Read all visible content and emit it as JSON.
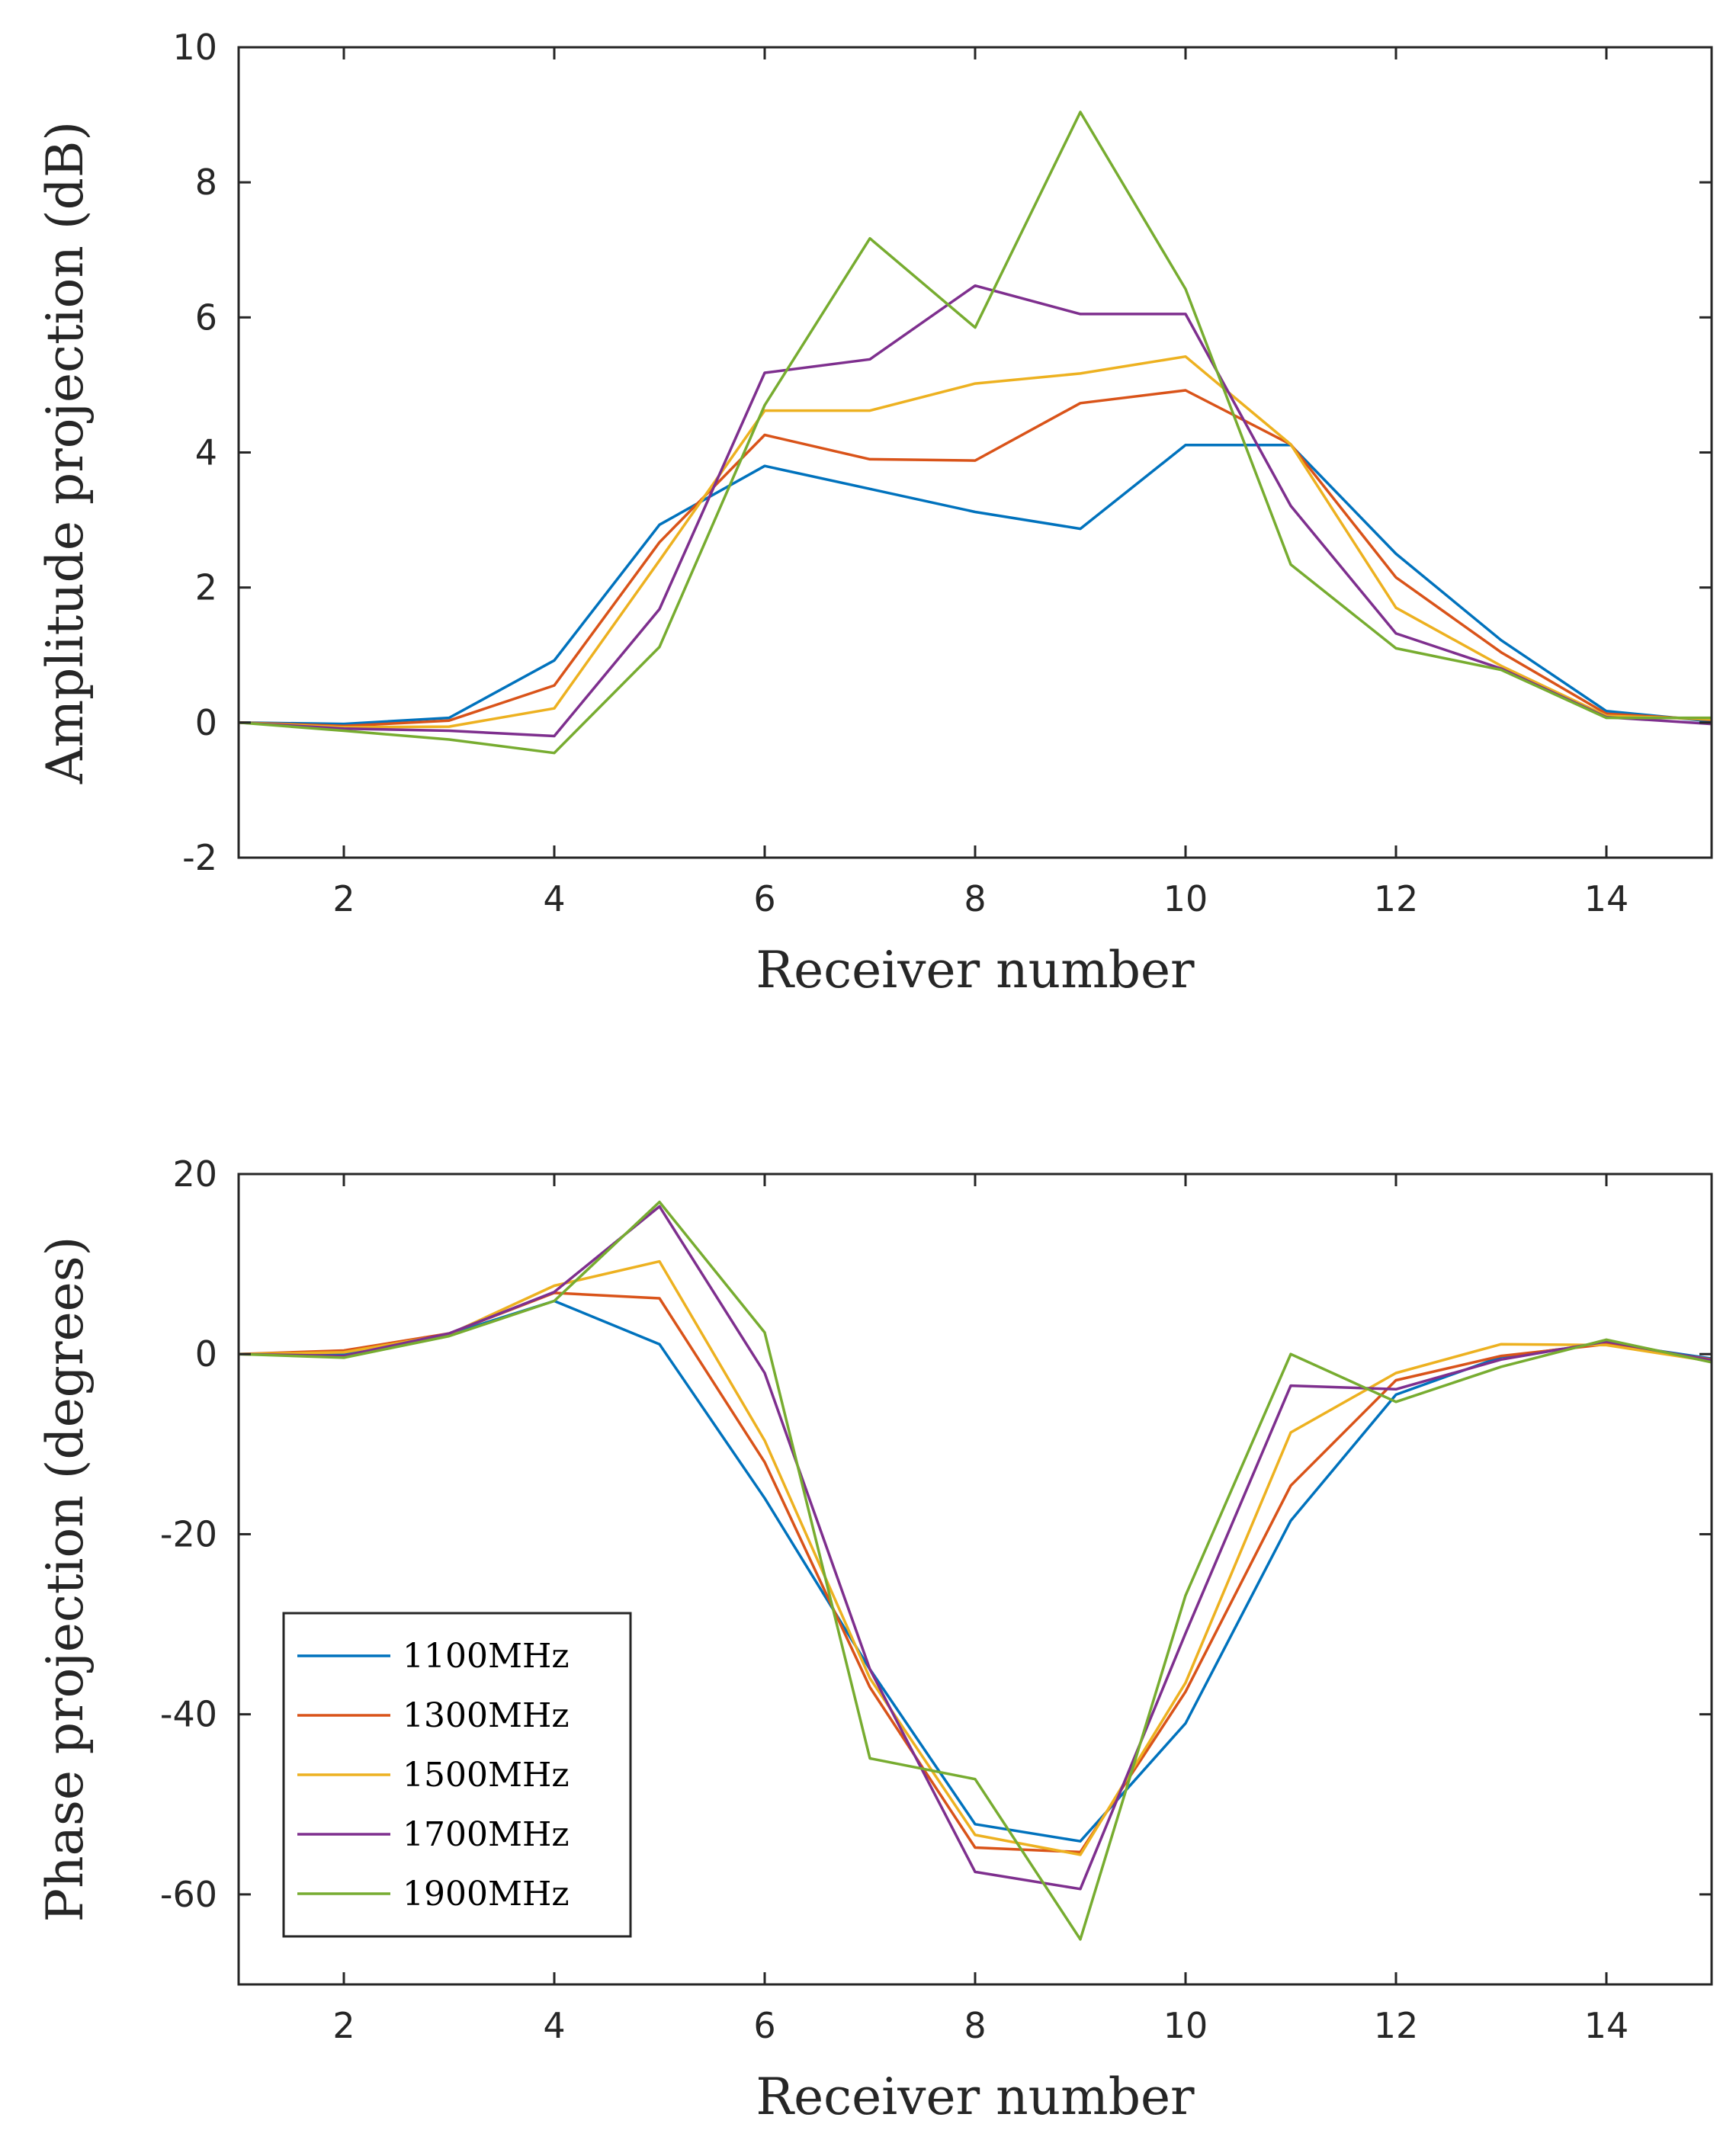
{
  "chart_data": [
    {
      "type": "line",
      "xlabel": "Receiver number",
      "ylabel": "Amplitude projection (dB)",
      "xlim": [
        1,
        15
      ],
      "ylim": [
        -2,
        10
      ],
      "xticks": [
        2,
        4,
        6,
        8,
        10,
        12,
        14
      ],
      "yticks": [
        -2,
        0,
        2,
        4,
        6,
        8,
        10
      ],
      "grid": false,
      "x": [
        1,
        2,
        3,
        4,
        5,
        6,
        7,
        8,
        9,
        10,
        11,
        12,
        13,
        14,
        15
      ],
      "series": [
        {
          "name": "1100MHz",
          "color": "#0072BD",
          "values": [
            0,
            -0.02,
            0.07,
            0.92,
            2.93,
            3.8,
            3.46,
            3.12,
            2.87,
            4.11,
            4.11,
            2.5,
            1.22,
            0.17,
            0.02
          ]
        },
        {
          "name": "1300MHz",
          "color": "#D95319",
          "values": [
            0,
            -0.05,
            0.03,
            0.55,
            2.67,
            4.26,
            3.9,
            3.88,
            4.73,
            4.92,
            4.12,
            2.15,
            1.04,
            0.13,
            0.04
          ]
        },
        {
          "name": "1500MHz",
          "color": "#EDB120",
          "values": [
            0,
            -0.07,
            -0.06,
            0.21,
            2.4,
            4.62,
            4.62,
            5.02,
            5.17,
            5.42,
            4.12,
            1.7,
            0.84,
            0.1,
            0.05
          ]
        },
        {
          "name": "1700MHz",
          "color": "#7E2F8E",
          "values": [
            0,
            -0.09,
            -0.12,
            -0.2,
            1.68,
            5.18,
            5.38,
            6.47,
            6.05,
            6.05,
            3.21,
            1.32,
            0.8,
            0.08,
            -0.02
          ]
        },
        {
          "name": "1900MHz",
          "color": "#77AC30",
          "values": [
            0,
            -0.12,
            -0.25,
            -0.45,
            1.12,
            4.7,
            7.17,
            5.85,
            9.04,
            6.42,
            2.34,
            1.1,
            0.78,
            0.07,
            0.07
          ]
        }
      ]
    },
    {
      "type": "line",
      "xlabel": "Receiver number",
      "ylabel": "Phase projection (degrees)",
      "xlim": [
        1,
        15
      ],
      "ylim": [
        -70,
        20
      ],
      "xticks": [
        2,
        4,
        6,
        8,
        10,
        12,
        14
      ],
      "yticks": [
        -60,
        -40,
        -20,
        0,
        20
      ],
      "grid": false,
      "legend_placement": "lower-left",
      "x": [
        1,
        2,
        3,
        4,
        5,
        6,
        7,
        8,
        9,
        10,
        11,
        12,
        13,
        14,
        15
      ],
      "series": [
        {
          "name": "1100MHz",
          "color": "#0072BD",
          "values": [
            0,
            0,
            2.2,
            5.9,
            1.1,
            -16,
            -35,
            -52.2,
            -54.1,
            -41,
            -18.5,
            -4.5,
            -0.3,
            1.2,
            -0.5
          ]
        },
        {
          "name": "1300MHz",
          "color": "#D95319",
          "values": [
            0,
            0.4,
            2.3,
            6.8,
            6.2,
            -12,
            -37,
            -54.8,
            -55.3,
            -37.5,
            -14.6,
            -2.9,
            -0.2,
            1.1,
            -0.6
          ]
        },
        {
          "name": "1500MHz",
          "color": "#EDB120",
          "values": [
            0,
            0.2,
            2.2,
            7.6,
            10.3,
            -9.6,
            -36,
            -53.4,
            -55.6,
            -36.5,
            -8.7,
            -2.1,
            1.1,
            1,
            -0.8
          ]
        },
        {
          "name": "1700MHz",
          "color": "#7E2F8E",
          "values": [
            0,
            -0.2,
            2.3,
            6.9,
            16.4,
            -2.1,
            -35,
            -57.5,
            -59.4,
            -31,
            -3.5,
            -3.9,
            -0.6,
            1.4,
            -0.7
          ]
        },
        {
          "name": "1900MHz",
          "color": "#77AC30",
          "values": [
            0,
            -0.4,
            2,
            5.9,
            16.9,
            2.4,
            -44.9,
            -47.2,
            -65,
            -26.8,
            0,
            -5.3,
            -1.4,
            1.6,
            -0.9
          ]
        }
      ]
    }
  ]
}
